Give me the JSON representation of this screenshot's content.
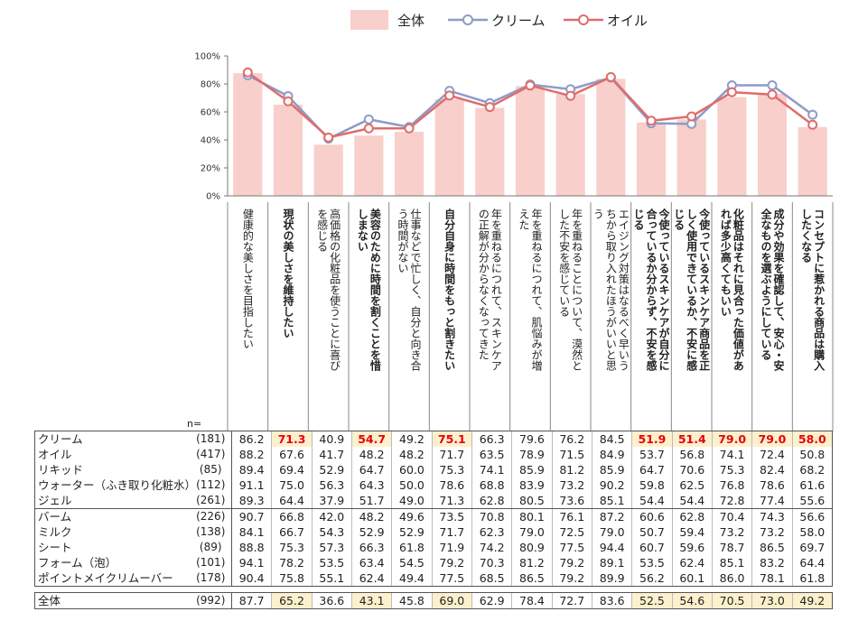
{
  "chart_data": {
    "type": "bar",
    "legend": [
      {
        "key": "all",
        "label": "全体",
        "kind": "bar",
        "color": "#f8cfcb"
      },
      {
        "key": "cream",
        "label": "クリーム",
        "kind": "line",
        "color": "#8c9cc8"
      },
      {
        "key": "oil",
        "label": "オイル",
        "kind": "line",
        "color": "#e06c6c"
      }
    ],
    "ylim": [
      0,
      100
    ],
    "yticks": [
      "0%",
      "20%",
      "40%",
      "60%",
      "80%",
      "100%"
    ],
    "categories": [
      {
        "label": "健康的な美しさを目指したい",
        "bold": false
      },
      {
        "label": "現状の美しさを維持したい",
        "bold": true
      },
      {
        "label": "高価格の化粧品を使うことに喜びを感じる",
        "bold": false
      },
      {
        "label": "美容のために時間を割くことを惜しまない",
        "bold": true
      },
      {
        "label": "仕事などで忙しく、自分と向き合う時間がない",
        "bold": false
      },
      {
        "label": "自分自身に時間をもっと割きたい",
        "bold": true
      },
      {
        "label": "年を重ねるにつれて、スキンケアの正解が分からなくなってきた",
        "bold": false
      },
      {
        "label": "年を重ねるにつれて、肌悩みが増えた",
        "bold": false
      },
      {
        "label": "年を重ねることについて、漠然とした不安を感じている",
        "bold": false
      },
      {
        "label": "エイジング対策はなるべく早いうちから取り入れたほうがいいと思う",
        "bold": false
      },
      {
        "label": "今使っているスキンケアが自分に合っているか分からず、不安を感じる",
        "bold": true
      },
      {
        "label": "今使っているスキンケア商品を正しく使用できているか、不安に感じる",
        "bold": true
      },
      {
        "label": "化粧品はそれに見合った価値があれば多少高くてもいい",
        "bold": true
      },
      {
        "label": "成分や効果を確認して、安心・安全なものを選ぶようにしている",
        "bold": true
      },
      {
        "label": "コンセプトに惹かれる商品は購入したくなる",
        "bold": true
      }
    ],
    "series": [
      {
        "name": "全体",
        "type": "bar",
        "values": [
          87.7,
          65.2,
          36.6,
          43.1,
          45.8,
          69.0,
          62.9,
          78.4,
          72.7,
          83.6,
          52.5,
          54.6,
          70.5,
          73.0,
          49.2
        ]
      },
      {
        "name": "クリーム",
        "type": "line",
        "values": [
          86.2,
          71.3,
          40.9,
          54.7,
          49.2,
          75.1,
          66.3,
          79.6,
          76.2,
          84.5,
          51.9,
          51.4,
          79.0,
          79.0,
          58.0
        ]
      },
      {
        "name": "オイル",
        "type": "line",
        "values": [
          88.2,
          67.6,
          41.7,
          48.2,
          48.2,
          71.7,
          63.5,
          78.9,
          71.5,
          84.9,
          53.7,
          56.8,
          74.1,
          72.4,
          50.8
        ]
      }
    ],
    "n_label": "n="
  },
  "table": {
    "groups": [
      [
        {
          "name": "クリーム",
          "n": "(181)",
          "values": [
            "86.2",
            "71.3",
            "40.9",
            "54.7",
            "49.2",
            "75.1",
            "66.3",
            "79.6",
            "76.2",
            "84.5",
            "51.9",
            "51.4",
            "79.0",
            "79.0",
            "58.0"
          ],
          "highlight": [
            1,
            3,
            5,
            10,
            11,
            12,
            13,
            14
          ]
        },
        {
          "name": "オイル",
          "n": "(417)",
          "values": [
            "88.2",
            "67.6",
            "41.7",
            "48.2",
            "48.2",
            "71.7",
            "63.5",
            "78.9",
            "71.5",
            "84.9",
            "53.7",
            "56.8",
            "74.1",
            "72.4",
            "50.8"
          ],
          "highlight": []
        },
        {
          "name": "リキッド",
          "n": "(85)",
          "values": [
            "89.4",
            "69.4",
            "52.9",
            "64.7",
            "60.0",
            "75.3",
            "74.1",
            "85.9",
            "81.2",
            "85.9",
            "64.7",
            "70.6",
            "75.3",
            "82.4",
            "68.2"
          ],
          "highlight": []
        },
        {
          "name": "ウォーター（ふき取り化粧水）",
          "n": "(112)",
          "values": [
            "91.1",
            "75.0",
            "56.3",
            "64.3",
            "50.0",
            "78.6",
            "68.8",
            "83.9",
            "73.2",
            "90.2",
            "59.8",
            "62.5",
            "76.8",
            "78.6",
            "61.6"
          ],
          "highlight": []
        },
        {
          "name": "ジェル",
          "n": "(261)",
          "values": [
            "89.3",
            "64.4",
            "37.9",
            "51.7",
            "49.0",
            "71.3",
            "62.8",
            "80.5",
            "73.6",
            "85.1",
            "54.4",
            "54.4",
            "72.8",
            "77.4",
            "55.6"
          ],
          "highlight": []
        }
      ],
      [
        {
          "name": "バーム",
          "n": "(226)",
          "values": [
            "90.7",
            "66.8",
            "42.0",
            "48.2",
            "49.6",
            "73.5",
            "70.8",
            "80.1",
            "76.1",
            "87.2",
            "60.6",
            "62.8",
            "70.4",
            "74.3",
            "56.6"
          ],
          "highlight": []
        },
        {
          "name": "ミルク",
          "n": "(138)",
          "values": [
            "84.1",
            "66.7",
            "54.3",
            "52.9",
            "52.9",
            "71.7",
            "62.3",
            "79.0",
            "72.5",
            "79.0",
            "50.7",
            "59.4",
            "73.2",
            "73.2",
            "58.0"
          ],
          "highlight": []
        },
        {
          "name": "シート",
          "n": "(89)",
          "values": [
            "88.8",
            "75.3",
            "57.3",
            "66.3",
            "61.8",
            "71.9",
            "74.2",
            "80.9",
            "77.5",
            "94.4",
            "60.7",
            "59.6",
            "78.7",
            "86.5",
            "69.7"
          ],
          "highlight": []
        },
        {
          "name": "フォーム（泡）",
          "n": "(101)",
          "values": [
            "94.1",
            "78.2",
            "53.5",
            "63.4",
            "54.5",
            "79.2",
            "70.3",
            "81.2",
            "79.2",
            "89.1",
            "53.5",
            "62.4",
            "85.1",
            "83.2",
            "64.4"
          ],
          "highlight": []
        },
        {
          "name": "ポイントメイクリムーバー",
          "n": "(178)",
          "values": [
            "90.4",
            "75.8",
            "55.1",
            "62.4",
            "49.4",
            "77.5",
            "68.5",
            "86.5",
            "79.2",
            "89.9",
            "56.2",
            "60.1",
            "86.0",
            "78.1",
            "61.8"
          ],
          "highlight": []
        }
      ]
    ],
    "total": {
      "name": "全体",
      "n": "(992)",
      "values": [
        "87.7",
        "65.2",
        "36.6",
        "43.1",
        "45.8",
        "69.0",
        "62.9",
        "78.4",
        "72.7",
        "83.6",
        "52.5",
        "54.6",
        "70.5",
        "73.0",
        "49.2"
      ],
      "highlight": [
        1,
        3,
        5,
        10,
        11,
        12,
        13,
        14
      ]
    }
  }
}
